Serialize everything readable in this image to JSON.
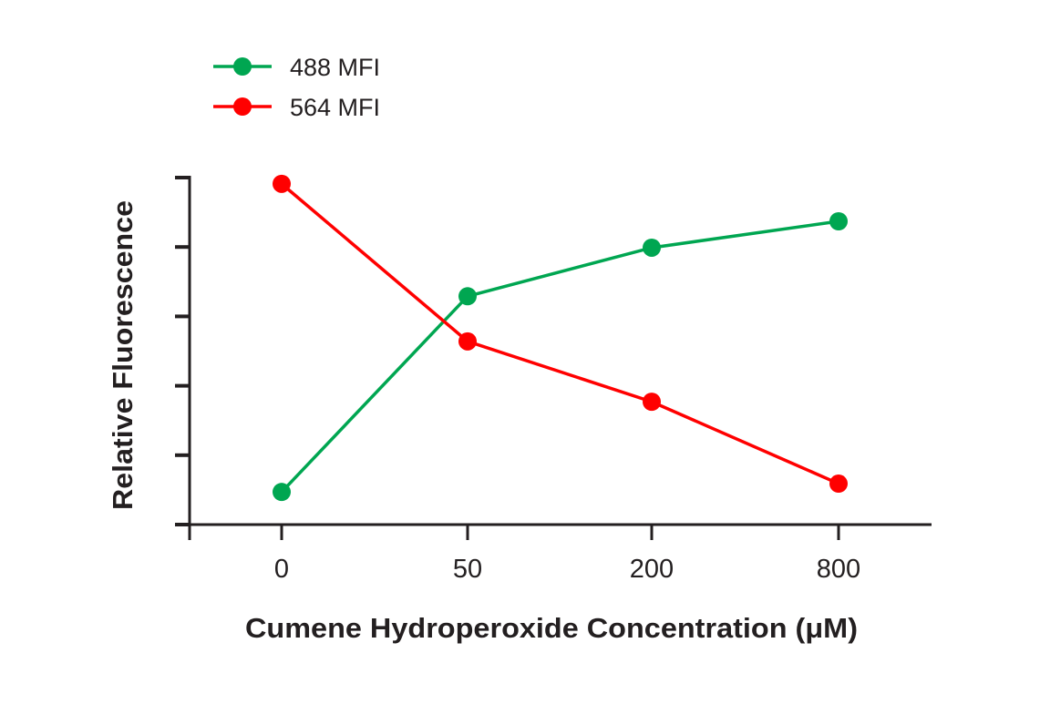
{
  "chart_data": {
    "type": "line",
    "title": "",
    "xlabel": "Cumene Hydroperoxide Concentration (μM)",
    "ylabel": "Relative Fluorescence",
    "categories": [
      "0",
      "50",
      "200",
      "800"
    ],
    "ylim": [
      0,
      5
    ],
    "y_ticks_labeled": false,
    "grid": false,
    "legend_position": "top-left",
    "series": [
      {
        "name": "488 MFI",
        "color": "#00a651",
        "values": [
          0.47,
          3.29,
          3.99,
          4.37
        ]
      },
      {
        "name": "564 MFI",
        "color": "#ff0000",
        "values": [
          4.91,
          2.64,
          1.77,
          0.59
        ]
      }
    ]
  }
}
